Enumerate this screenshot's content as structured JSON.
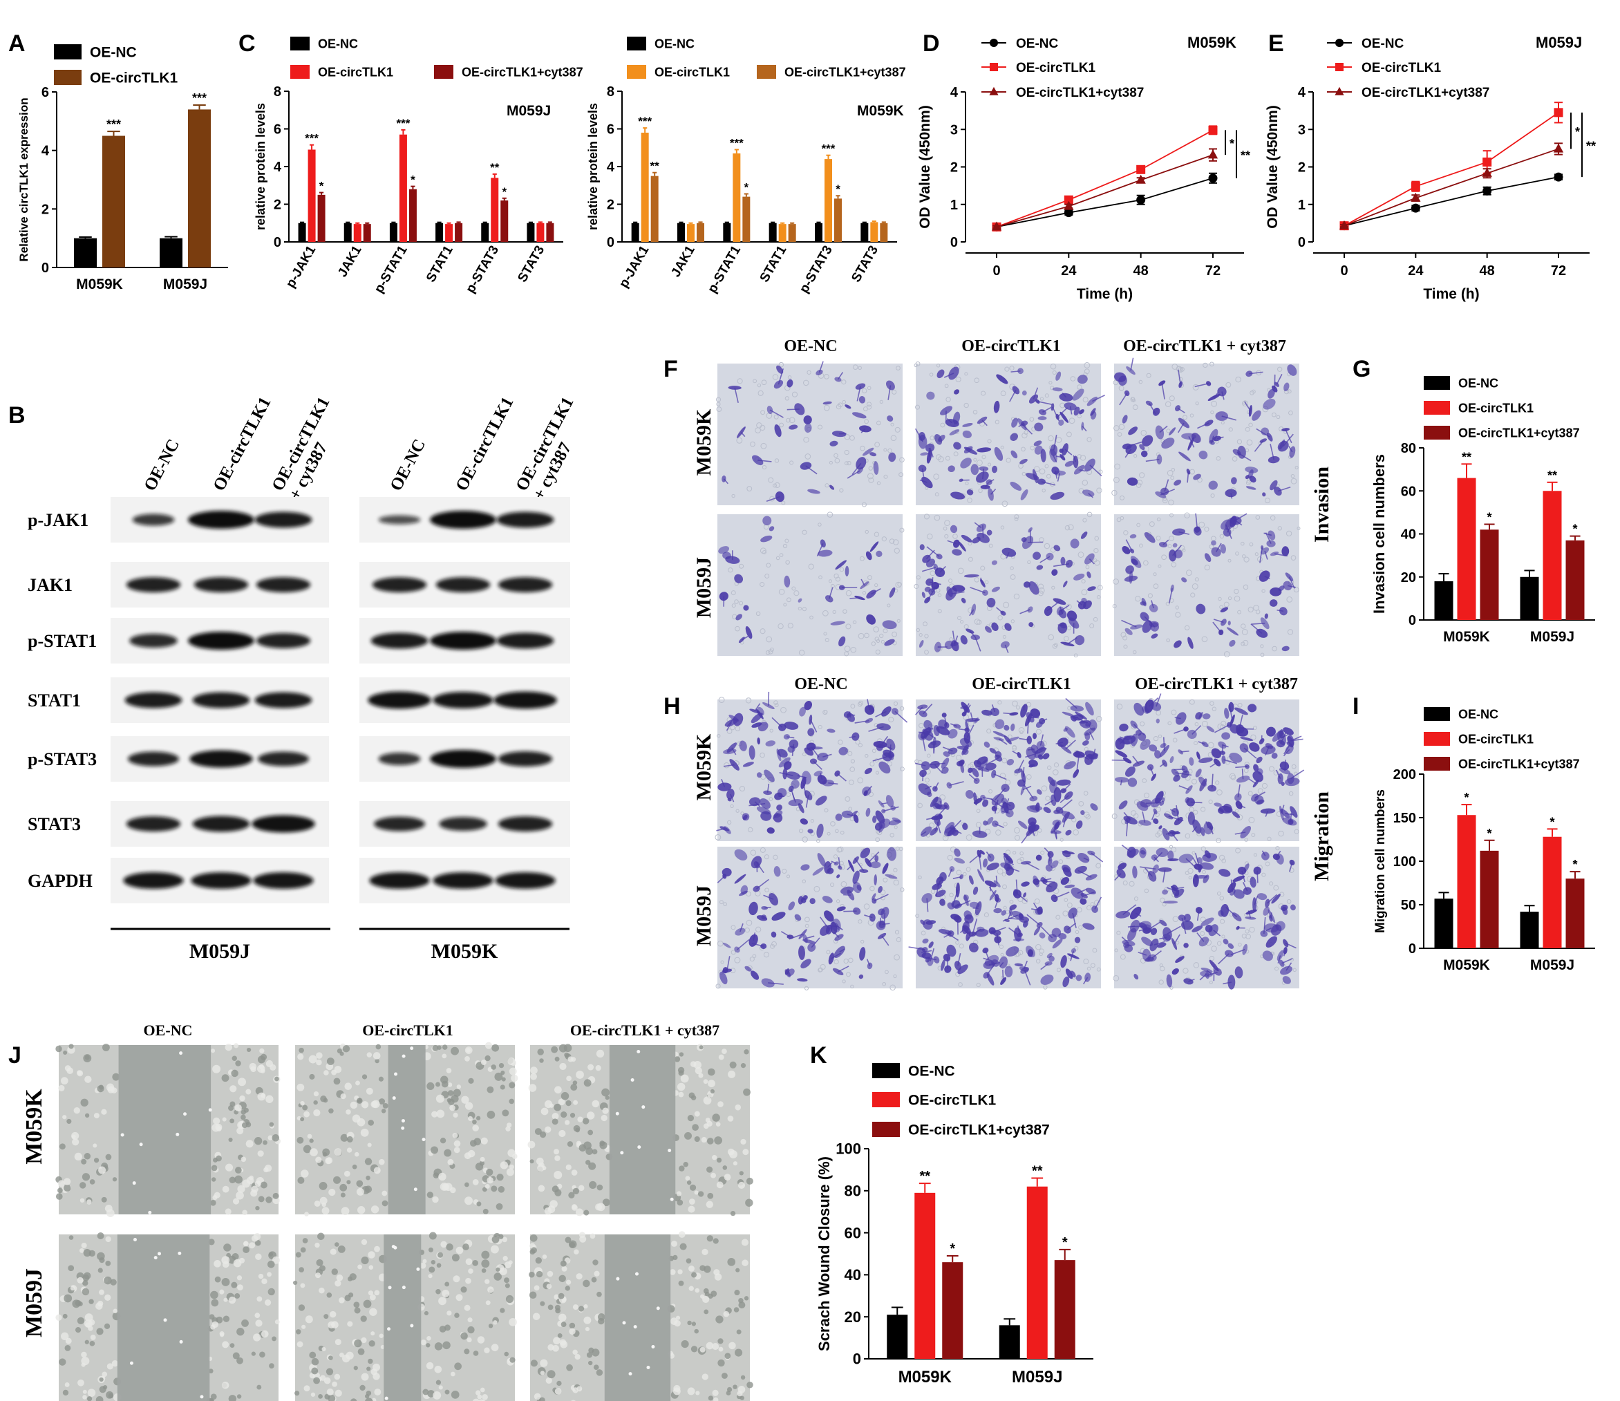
{
  "panel_letters": [
    "A",
    "B",
    "C",
    "D",
    "E",
    "F",
    "G",
    "H",
    "I",
    "J",
    "K"
  ],
  "colors": {
    "oe_nc": "#000000",
    "brown": "#7a3d0f",
    "red": "#ee1c1c",
    "dark_red": "#8b0f0f",
    "orange": "#f28f1c",
    "dark_orange": "#b5651d",
    "stain": "#4a3aa8",
    "well_bg": "#d4d8e2",
    "wound_bg": "#9fa3a1"
  },
  "panel_b": {
    "lane_labels": [
      "OE-NC",
      "OE-circTLK1",
      "OE-circTLK1\n+ cyt387"
    ],
    "proteins": [
      "p-JAK1",
      "JAK1",
      "p-STAT1",
      "STAT1",
      "p-STAT3",
      "STAT3",
      "GAPDH"
    ],
    "group_labels": [
      "M059J",
      "M059K"
    ]
  },
  "panel_f": {
    "columns": [
      "OE-NC",
      "OE-circTLK1",
      "OE-circTLK1 + cyt387"
    ],
    "rows": [
      "M059K",
      "M059J"
    ],
    "side_label": "Invasion"
  },
  "panel_h": {
    "columns": [
      "OE-NC",
      "OE-circTLK1",
      "OE-circTLK1 + cyt387"
    ],
    "rows": [
      "M059K",
      "M059J"
    ],
    "side_label": "Migration"
  },
  "panel_j": {
    "columns": [
      "OE-NC",
      "OE-circTLK1",
      "OE-circTLK1 + cyt387"
    ],
    "rows": [
      "M059K",
      "M059J"
    ]
  },
  "chart_data": [
    {
      "id": "A",
      "type": "bar",
      "ylabel": "Relative circTLK1 expression",
      "ylim": [
        0,
        6
      ],
      "yticks": [
        0,
        2,
        4,
        6
      ],
      "categories": [
        "M059K",
        "M059J"
      ],
      "series": [
        {
          "name": "OE-NC",
          "color": "#000000",
          "values": [
            1.0,
            1.0
          ],
          "errors": [
            0.04,
            0.05
          ],
          "sig": [
            "",
            ""
          ]
        },
        {
          "name": "OE-circTLK1",
          "color": "#7a3d0f",
          "values": [
            4.5,
            5.4
          ],
          "errors": [
            0.15,
            0.15
          ],
          "sig": [
            "***",
            "***"
          ]
        }
      ]
    },
    {
      "id": "C1",
      "type": "bar",
      "subtitle": "M059J",
      "ylabel": "relative protein levels",
      "ylim": [
        0,
        8
      ],
      "yticks": [
        0,
        2,
        4,
        6,
        8
      ],
      "categories": [
        "p-JAK1",
        "JAK1",
        "p-STAT1",
        "STAT1",
        "p-STAT3",
        "STAT3"
      ],
      "series": [
        {
          "name": "OE-NC",
          "color": "#000000",
          "values": [
            1.0,
            1.0,
            1.0,
            1.0,
            1.0,
            1.0
          ],
          "errors": [
            0.04,
            0.04,
            0.04,
            0.04,
            0.04,
            0.04
          ],
          "sig": [
            "",
            "",
            "",
            "",
            "",
            ""
          ]
        },
        {
          "name": "OE-circTLK1",
          "color": "#ee1c1c",
          "values": [
            4.9,
            0.95,
            5.7,
            0.95,
            3.4,
            1.0
          ],
          "errors": [
            0.25,
            0.05,
            0.25,
            0.05,
            0.2,
            0.05
          ],
          "sig": [
            "***",
            "",
            "***",
            "",
            "**",
            ""
          ]
        },
        {
          "name": "OE-circTLK1+cyt387",
          "color": "#8b0f0f",
          "values": [
            2.5,
            0.95,
            2.8,
            1.0,
            2.2,
            1.0
          ],
          "errors": [
            0.12,
            0.05,
            0.15,
            0.05,
            0.12,
            0.05
          ],
          "sig": [
            "*",
            "",
            "*",
            "",
            "*",
            ""
          ]
        }
      ]
    },
    {
      "id": "C2",
      "type": "bar",
      "subtitle": "M059K",
      "ylabel": "relative protein levels",
      "ylim": [
        0,
        8
      ],
      "yticks": [
        0,
        2,
        4,
        6,
        8
      ],
      "categories": [
        "p-JAK1",
        "JAK1",
        "p-STAT1",
        "STAT1",
        "p-STAT3",
        "STAT3"
      ],
      "series": [
        {
          "name": "OE-NC",
          "color": "#000000",
          "values": [
            1.0,
            1.0,
            1.0,
            1.0,
            1.0,
            1.0
          ],
          "errors": [
            0.04,
            0.04,
            0.04,
            0.04,
            0.04,
            0.04
          ],
          "sig": [
            "",
            "",
            "",
            "",
            "",
            ""
          ]
        },
        {
          "name": "OE-circTLK1",
          "color": "#f28f1c",
          "values": [
            5.8,
            0.95,
            4.7,
            0.95,
            4.4,
            1.05
          ],
          "errors": [
            0.25,
            0.05,
            0.2,
            0.05,
            0.2,
            0.05
          ],
          "sig": [
            "***",
            "",
            "***",
            "",
            "***",
            ""
          ]
        },
        {
          "name": "OE-circTLK1+cyt387",
          "color": "#b5651d",
          "values": [
            3.5,
            1.0,
            2.4,
            0.95,
            2.3,
            1.0
          ],
          "errors": [
            0.18,
            0.05,
            0.15,
            0.05,
            0.15,
            0.05
          ],
          "sig": [
            "**",
            "",
            "*",
            "",
            "*",
            ""
          ]
        }
      ]
    },
    {
      "id": "D",
      "type": "line",
      "subtitle": "M059K",
      "xlabel": "Time (h)",
      "ylabel": "OD Value (450nm)",
      "x": [
        0,
        24,
        48,
        72
      ],
      "xticks": [
        0,
        24,
        48,
        72
      ],
      "ylim": [
        0,
        4
      ],
      "yticks": [
        0,
        1,
        2,
        3,
        4
      ],
      "series": [
        {
          "name": "OE-NC",
          "color": "#000000",
          "marker": "circle",
          "values": [
            0.4,
            0.78,
            1.12,
            1.7
          ],
          "errors": [
            0.03,
            0.06,
            0.12,
            0.13
          ]
        },
        {
          "name": "OE-circTLK1",
          "color": "#ee1c1c",
          "marker": "square",
          "values": [
            0.4,
            1.12,
            1.93,
            2.98
          ],
          "errors": [
            0.03,
            0.05,
            0.08,
            0.11
          ]
        },
        {
          "name": "OE-circTLK1+cyt387",
          "color": "#8b0f0f",
          "marker": "triangle",
          "values": [
            0.4,
            0.95,
            1.65,
            2.32
          ],
          "errors": [
            0.03,
            0.05,
            0.06,
            0.16
          ]
        }
      ],
      "sig": [
        "*",
        "**"
      ]
    },
    {
      "id": "E",
      "type": "line",
      "subtitle": "M059J",
      "xlabel": "Time (h)",
      "ylabel": "OD Value (450nm)",
      "x": [
        0,
        24,
        48,
        72
      ],
      "xticks": [
        0,
        24,
        48,
        72
      ],
      "ylim": [
        0,
        4
      ],
      "yticks": [
        0,
        1,
        2,
        3,
        4
      ],
      "series": [
        {
          "name": "OE-NC",
          "color": "#000000",
          "marker": "circle",
          "values": [
            0.43,
            0.9,
            1.36,
            1.73
          ],
          "errors": [
            0.03,
            0.07,
            0.1,
            0.07
          ]
        },
        {
          "name": "OE-circTLK1",
          "color": "#ee1c1c",
          "marker": "square",
          "values": [
            0.43,
            1.48,
            2.13,
            3.45
          ],
          "errors": [
            0.03,
            0.13,
            0.3,
            0.27
          ]
        },
        {
          "name": "OE-circTLK1+cyt387",
          "color": "#8b0f0f",
          "marker": "triangle",
          "values": [
            0.43,
            1.17,
            1.83,
            2.48
          ],
          "errors": [
            0.03,
            0.08,
            0.12,
            0.15
          ]
        }
      ],
      "sig": [
        "*",
        "**"
      ]
    },
    {
      "id": "G",
      "type": "bar",
      "ylabel": "Invasion cell numbers",
      "ylim": [
        0,
        80
      ],
      "yticks": [
        0,
        20,
        40,
        60,
        80
      ],
      "categories": [
        "M059K",
        "M059J"
      ],
      "series": [
        {
          "name": "OE-NC",
          "color": "#000000",
          "values": [
            18,
            20
          ],
          "errors": [
            3.5,
            3
          ],
          "sig": [
            "",
            ""
          ]
        },
        {
          "name": "OE-circTLK1",
          "color": "#ee1c1c",
          "values": [
            66,
            60
          ],
          "errors": [
            6.5,
            4
          ],
          "sig": [
            "**",
            "**"
          ]
        },
        {
          "name": "OE-circTLK1+cyt387",
          "color": "#8b0f0f",
          "values": [
            42,
            37
          ],
          "errors": [
            2.5,
            2
          ],
          "sig": [
            "*",
            "*"
          ]
        }
      ]
    },
    {
      "id": "I",
      "type": "bar",
      "ylabel": "Migration cell numbers",
      "ylim": [
        0,
        200
      ],
      "yticks": [
        0,
        50,
        100,
        150,
        200
      ],
      "categories": [
        "M059K",
        "M059J"
      ],
      "series": [
        {
          "name": "OE-NC",
          "color": "#000000",
          "values": [
            57,
            42
          ],
          "errors": [
            7,
            7
          ],
          "sig": [
            "",
            ""
          ]
        },
        {
          "name": "OE-circTLK1",
          "color": "#ee1c1c",
          "values": [
            153,
            128
          ],
          "errors": [
            12,
            9
          ],
          "sig": [
            "*",
            "*"
          ]
        },
        {
          "name": "OE-circTLK1+cyt387",
          "color": "#8b0f0f",
          "values": [
            112,
            80
          ],
          "errors": [
            12,
            8
          ],
          "sig": [
            "*",
            "*"
          ]
        }
      ]
    },
    {
      "id": "K",
      "type": "bar",
      "ylabel": "Scrach Wound Closure (%)",
      "ylim": [
        0,
        100
      ],
      "yticks": [
        0,
        20,
        40,
        60,
        80,
        100
      ],
      "categories": [
        "M059K",
        "M059J"
      ],
      "series": [
        {
          "name": "OE-NC",
          "color": "#000000",
          "values": [
            21,
            16
          ],
          "errors": [
            3.5,
            3
          ],
          "sig": [
            "",
            ""
          ]
        },
        {
          "name": "OE-circTLK1",
          "color": "#ee1c1c",
          "values": [
            79,
            82
          ],
          "errors": [
            4.5,
            4
          ],
          "sig": [
            "**",
            "**"
          ]
        },
        {
          "name": "OE-circTLK1+cyt387",
          "color": "#8b0f0f",
          "values": [
            46,
            47
          ],
          "errors": [
            3,
            5
          ],
          "sig": [
            "*",
            "*"
          ]
        }
      ]
    }
  ]
}
